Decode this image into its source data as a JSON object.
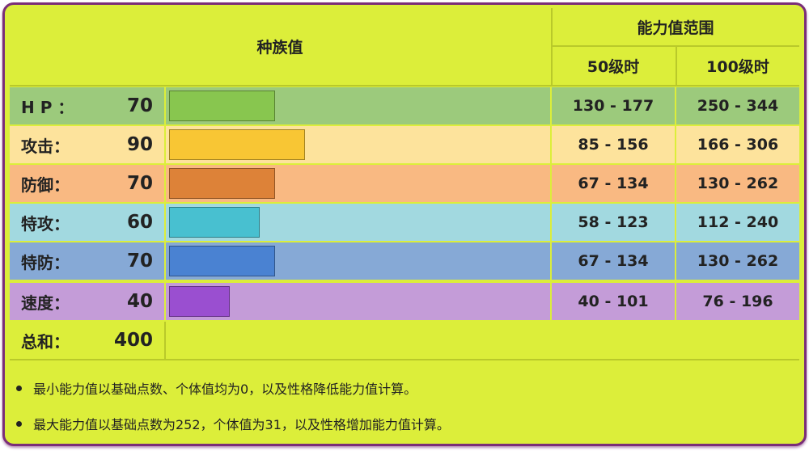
{
  "header": {
    "base_stats": "种族值",
    "stat_range": "能力值范围",
    "lv50": "50级时",
    "lv100": "100级时"
  },
  "rows": [
    {
      "label": "H P ：",
      "value": "70",
      "base": 70,
      "lv50": "130 - 177",
      "lv100": "250 - 344",
      "row_color": "#9cca7c",
      "bar_color": "#88c64f"
    },
    {
      "label": "攻击：",
      "value": "90",
      "base": 90,
      "lv50": "85 - 156",
      "lv100": "166 - 306",
      "row_color": "#fde39c",
      "bar_color": "#f8c634"
    },
    {
      "label": "防御：",
      "value": "70",
      "base": 70,
      "lv50": "67 - 134",
      "lv100": "130 - 262",
      "row_color": "#f9b982",
      "bar_color": "#dd8238"
    },
    {
      "label": "特攻：",
      "value": "60",
      "base": 60,
      "lv50": "58 - 123",
      "lv100": "112 - 240",
      "row_color": "#a2d9e0",
      "bar_color": "#48c0d0"
    },
    {
      "label": "特防：",
      "value": "70",
      "base": 70,
      "lv50": "67 - 134",
      "lv100": "130 - 262",
      "row_color": "#86a9d6",
      "bar_color": "#4a82d2"
    },
    {
      "label": "速度：",
      "value": "40",
      "base": 40,
      "lv50": "40 - 101",
      "lv100": "76 - 196",
      "row_color": "#c49cd8",
      "bar_color": "#9a4fd0"
    }
  ],
  "total": {
    "label": "总和：",
    "value": "400"
  },
  "notes": [
    "最小能力值以基础点数、个体值均为0，以及性格降低能力值计算。",
    "最大能力值以基础点数为252，个体值为31，以及性格增加能力值计算。"
  ]
}
